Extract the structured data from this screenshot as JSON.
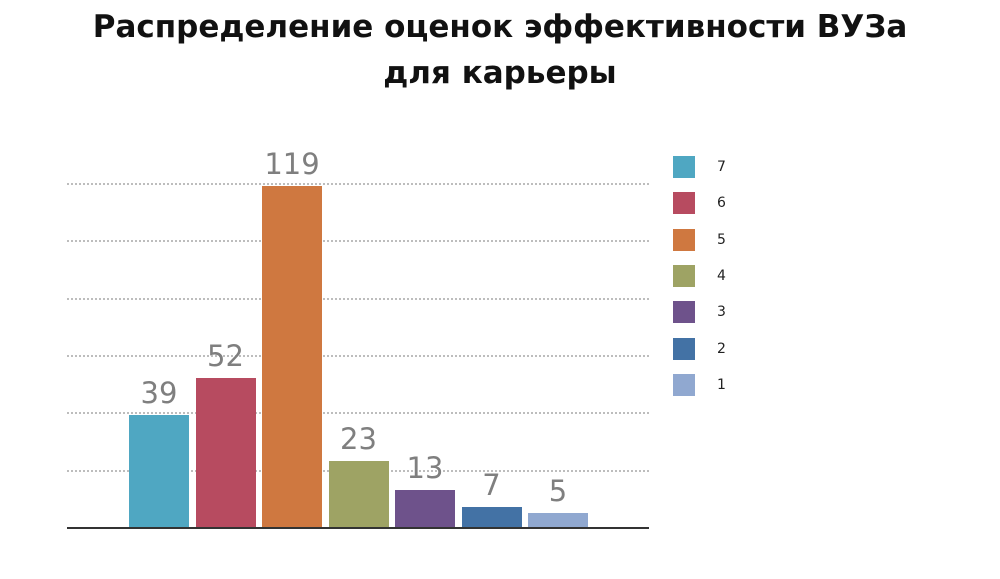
{
  "chart_data": {
    "type": "bar",
    "title": "Распределение оценок эффективности ВУЗа для карьеры",
    "categories": [
      "7",
      "6",
      "5",
      "4",
      "3",
      "2",
      "1"
    ],
    "values": [
      39,
      52,
      119,
      23,
      13,
      7,
      5
    ],
    "colors": [
      "#4fa7c2",
      "#b74b60",
      "#cf7840",
      "#9ea364",
      "#6e528b",
      "#4372a5",
      "#90a8d0"
    ],
    "xlabel": "",
    "ylabel": "",
    "ylim": [
      0,
      120
    ],
    "grid": true,
    "gridlines": [
      20,
      40,
      60,
      80,
      100,
      120
    ],
    "legend_position": "right",
    "legend": [
      "7",
      "6",
      "5",
      "4",
      "3",
      "2",
      "1"
    ]
  },
  "title": {
    "line1": "Распределение оценок эффективности ВУЗа",
    "line2": "для карьеры"
  },
  "bars": [
    {
      "label": "39",
      "value": 39,
      "color": "#4fa7c2"
    },
    {
      "label": "52",
      "value": 52,
      "color": "#b74b60"
    },
    {
      "label": "119",
      "value": 119,
      "color": "#cf7840"
    },
    {
      "label": "23",
      "value": 23,
      "color": "#9ea364"
    },
    {
      "label": "13",
      "value": 13,
      "color": "#6e528b"
    },
    {
      "label": "7",
      "value": 7,
      "color": "#4372a5"
    },
    {
      "label": "5",
      "value": 5,
      "color": "#90a8d0"
    }
  ],
  "legend": [
    {
      "label": "7",
      "color": "#4fa7c2"
    },
    {
      "label": "6",
      "color": "#b74b60"
    },
    {
      "label": "5",
      "color": "#cf7840"
    },
    {
      "label": "4",
      "color": "#9ea364"
    },
    {
      "label": "3",
      "color": "#6e528b"
    },
    {
      "label": "2",
      "color": "#4372a5"
    },
    {
      "label": "1",
      "color": "#90a8d0"
    }
  ]
}
